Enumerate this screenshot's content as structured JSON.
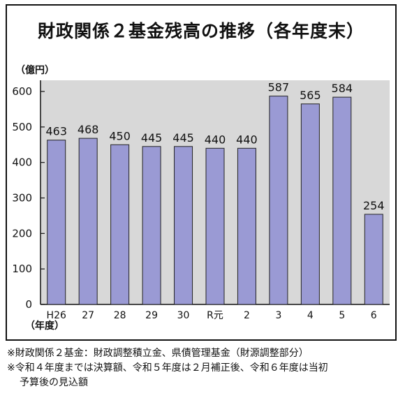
{
  "title": "財政関係２基金残高の推移（各年度末）",
  "y_unit": "（億円）",
  "x_unit": "（年度）",
  "notes": [
    "※財政関係２基金：財政調整積立金、県債管理基金（財源調整部分）",
    "※令和４年度までは決算額、令和５年度は２月補正後、令和６年度は当初",
    "予算後の見込額"
  ],
  "chart_data": {
    "type": "bar",
    "title": "財政関係２基金残高の推移（各年度末）",
    "xlabel": "（年度）",
    "ylabel": "（億円）",
    "categories": [
      "H26",
      "27",
      "28",
      "29",
      "30",
      "R元",
      "2",
      "3",
      "4",
      "5",
      "6"
    ],
    "values": [
      463,
      468,
      450,
      445,
      445,
      440,
      440,
      587,
      565,
      584,
      254
    ],
    "ylim": [
      0,
      600
    ],
    "yticks": [
      0,
      100,
      200,
      300,
      400,
      500,
      600
    ],
    "grid": false,
    "colors": {
      "bar": "#9a9ad4",
      "plot_bg": "#d8d8d8",
      "bar_edge": "#222222"
    }
  }
}
